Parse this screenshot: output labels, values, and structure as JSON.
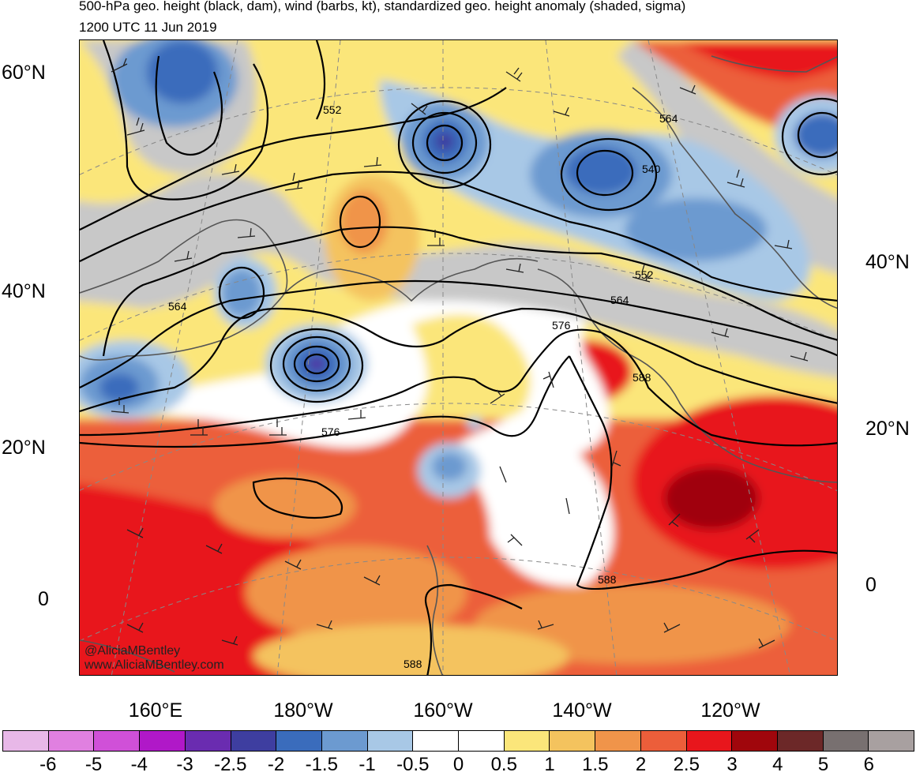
{
  "title": {
    "line1": "500-hPa geo. height (black, dam), wind (barbs, kt), standardized geo. height anomaly (shaded, sigma)",
    "line2": "1200 UTC 11 Jun 2019"
  },
  "axes": {
    "left_lat_labels": [
      "60°N",
      "40°N",
      "20°N",
      "0"
    ],
    "right_lat_labels": [
      "40°N",
      "20°N",
      "0"
    ],
    "lon_labels": [
      "160°E",
      "180°W",
      "160°W",
      "140°W",
      "120°W"
    ]
  },
  "contours": {
    "labels": [
      "552",
      "564",
      "540",
      "552",
      "564",
      "564",
      "576",
      "576",
      "588",
      "588",
      "588"
    ]
  },
  "credits": {
    "handle": "@AliciaMBentley",
    "website": "www.AliciaMBentley.com"
  },
  "colorbar": {
    "colors": [
      "#e8b8e8",
      "#e080e0",
      "#d050d8",
      "#b018c8",
      "#6a2cb0",
      "#3e3ea0",
      "#3a6cbc",
      "#6c9ad0",
      "#a8c8e6",
      "#ffffff",
      "#ffffff",
      "#fbe67a",
      "#f4c35e",
      "#f0944a",
      "#ec5e3a",
      "#e8161c",
      "#a0060c",
      "#6c2828",
      "#787070",
      "#a8a0a0"
    ],
    "labels": [
      "-6",
      "-5",
      "-4",
      "-3",
      "-2.5",
      "-2",
      "-1.5",
      "-1",
      "-0.5",
      "0",
      "0.5",
      "1",
      "1.5",
      "2",
      "2.5",
      "3",
      "4",
      "5",
      "6"
    ]
  }
}
